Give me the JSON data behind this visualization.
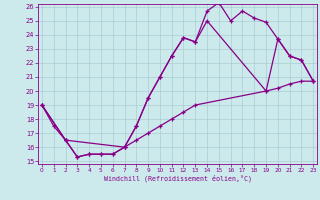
{
  "xlabel": "Windchill (Refroidissement éolien,°C)",
  "bg_color": "#cce9ec",
  "grid_color": "#aacdd2",
  "line_color": "#880088",
  "xmin": 0,
  "xmax": 23,
  "ymin": 15,
  "ymax": 26,
  "yticks": [
    15,
    16,
    17,
    18,
    19,
    20,
    21,
    22,
    23,
    24,
    25,
    26
  ],
  "xticks": [
    0,
    1,
    2,
    3,
    4,
    5,
    6,
    7,
    8,
    9,
    10,
    11,
    12,
    13,
    14,
    15,
    16,
    17,
    18,
    19,
    20,
    21,
    22,
    23
  ],
  "series1_x": [
    0,
    1,
    2,
    3,
    4,
    5,
    6,
    7,
    8,
    9,
    10,
    11,
    12,
    13,
    14,
    15,
    16,
    17,
    18,
    19,
    20,
    21,
    22,
    23
  ],
  "series1_y": [
    19.0,
    17.5,
    16.5,
    15.3,
    15.5,
    15.5,
    15.5,
    16.0,
    17.5,
    19.5,
    21.0,
    22.5,
    23.8,
    23.5,
    25.7,
    26.3,
    25.0,
    25.7,
    25.2,
    24.9,
    23.7,
    22.5,
    22.2,
    20.7
  ],
  "series2_x": [
    0,
    2,
    3,
    4,
    5,
    6,
    7,
    8,
    9,
    10,
    11,
    12,
    13,
    19,
    20,
    21,
    22,
    23
  ],
  "series2_y": [
    19.0,
    16.5,
    15.3,
    15.5,
    15.5,
    15.5,
    16.0,
    16.5,
    17.0,
    17.5,
    18.0,
    18.5,
    19.0,
    20.0,
    20.2,
    20.5,
    20.7,
    20.7
  ],
  "series3_x": [
    0,
    2,
    7,
    8,
    9,
    10,
    11,
    12,
    13,
    14,
    19,
    20,
    21,
    22,
    23
  ],
  "series3_y": [
    19.0,
    16.5,
    16.0,
    17.5,
    19.5,
    21.0,
    22.5,
    23.8,
    23.5,
    25.0,
    20.0,
    23.7,
    22.5,
    22.2,
    20.7
  ]
}
